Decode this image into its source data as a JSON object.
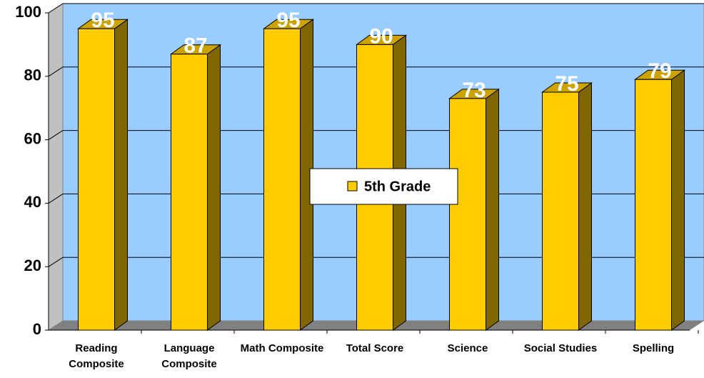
{
  "chart_data": {
    "type": "bar",
    "categories": [
      "Reading Composite",
      "Language Composite",
      "Math Composite",
      "Total Score",
      "Science",
      "Social Studies",
      "Spelling"
    ],
    "series": [
      {
        "name": "5th Grade",
        "color": "#ffcc00",
        "values": [
          95,
          87,
          95,
          90,
          73,
          75,
          79
        ]
      }
    ],
    "ylim": [
      0,
      100
    ],
    "yticks": [
      0,
      20,
      40,
      60,
      80,
      100
    ],
    "grid": true,
    "legend": "center",
    "three_d": true
  }
}
